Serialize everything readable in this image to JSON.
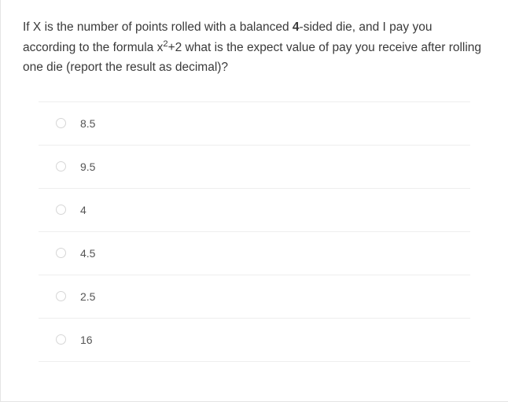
{
  "question": {
    "segments": [
      {
        "text": "If X is the number of points rolled with a balanced ",
        "bold": false
      },
      {
        "text": "4",
        "bold": true
      },
      {
        "text": "-sided die, and I pay you according to the formula x",
        "bold": false
      },
      {
        "text": "2",
        "bold": false,
        "sup": true
      },
      {
        "text": "+2 what is the expect value of pay you receive after rolling one die (report the result as decimal)?",
        "bold": false
      }
    ]
  },
  "options": [
    {
      "label": "8.5"
    },
    {
      "label": "9.5"
    },
    {
      "label": "4"
    },
    {
      "label": "4.5"
    },
    {
      "label": "2.5"
    },
    {
      "label": "16"
    }
  ],
  "colors": {
    "text_primary": "#3a3a3a",
    "text_option": "#555555",
    "border_light": "#eeeeee",
    "radio_border": "#d6d6d6",
    "container_border": "#e5e5e5",
    "background": "#ffffff"
  },
  "typography": {
    "question_fontsize": 15.5,
    "option_fontsize": 14
  }
}
